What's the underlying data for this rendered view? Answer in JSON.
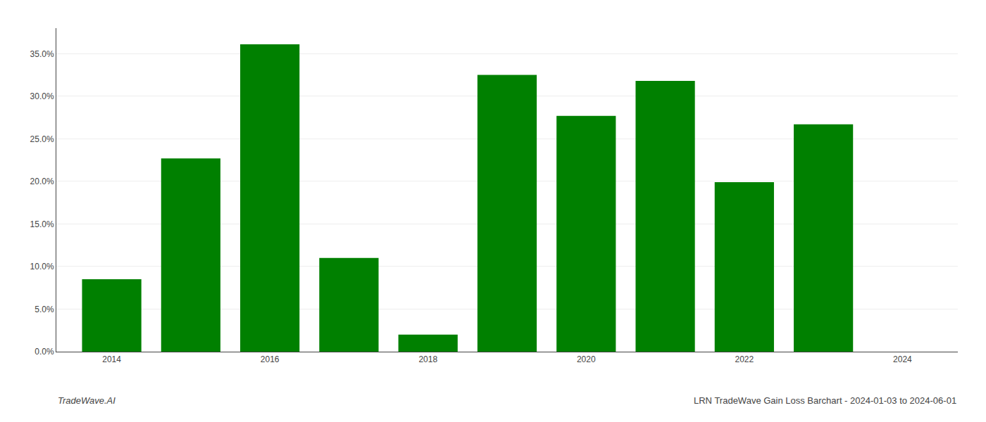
{
  "chart_data": {
    "type": "bar",
    "x": [
      2014,
      2015,
      2016,
      2017,
      2018,
      2019,
      2020,
      2021,
      2022,
      2023
    ],
    "values": [
      0.085,
      0.227,
      0.361,
      0.11,
      0.02,
      0.325,
      0.277,
      0.318,
      0.199,
      0.267
    ],
    "color": "#008000",
    "xlim": [
      2013.3,
      2024.7
    ],
    "xticks": [
      2014,
      2016,
      2018,
      2020,
      2022,
      2024
    ],
    "ylim": [
      0.0,
      0.38
    ],
    "yticks": [
      {
        "value": 0.0,
        "label": "0.0%"
      },
      {
        "value": 0.05,
        "label": "5.0%"
      },
      {
        "value": 0.1,
        "label": "10.0%"
      },
      {
        "value": 0.15,
        "label": "15.0%"
      },
      {
        "value": 0.2,
        "label": "20.0%"
      },
      {
        "value": 0.25,
        "label": "25.0%"
      },
      {
        "value": 0.3,
        "label": "30.0%"
      },
      {
        "value": 0.35,
        "label": "35.0%"
      }
    ],
    "grid": true,
    "annotations": [
      "TradeWave.AI",
      "LRN TradeWave Gain Loss Barchart - 2024-01-03 to 2024-06-01"
    ]
  }
}
